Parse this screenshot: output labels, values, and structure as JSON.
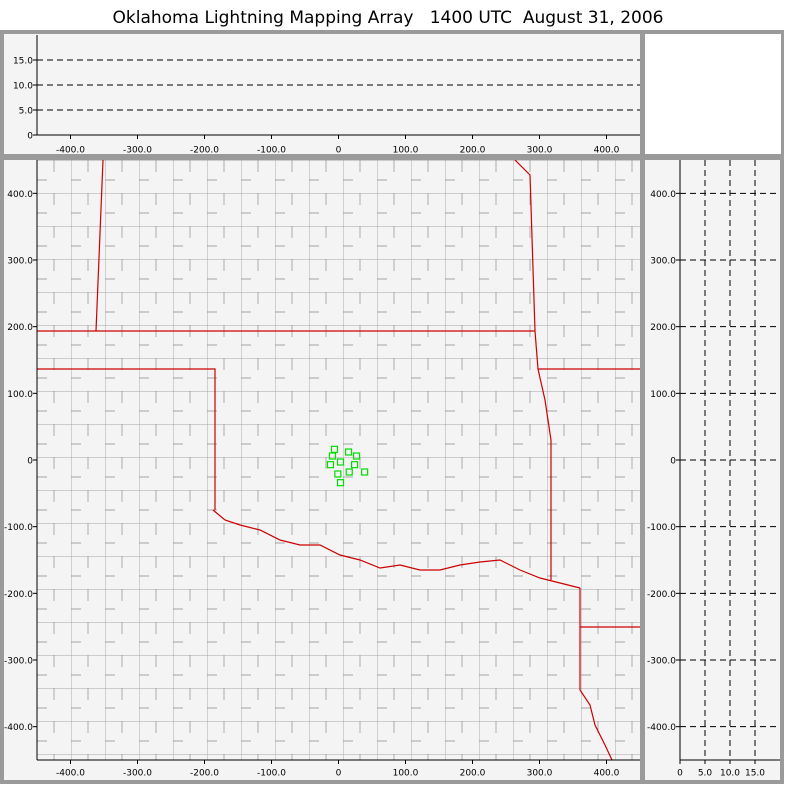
{
  "title": "Oklahoma Lightning Mapping Array   1400 UTC  August 31, 2006",
  "chart_data": [
    {
      "type": "scatter",
      "x": [],
      "y": [],
      "color": "#00dd00",
      "xlim": [
        -450,
        450
      ],
      "ylim": [
        0,
        20
      ],
      "xticks": [
        {
          "value": -400,
          "label": "-400.0"
        },
        {
          "value": -300,
          "label": "-300.0"
        },
        {
          "value": -200,
          "label": "-200.0"
        },
        {
          "value": -100,
          "label": "-100.0"
        },
        0,
        {
          "value": 100,
          "label": "100.0"
        },
        {
          "value": 200,
          "label": "200.0"
        },
        {
          "value": 300,
          "label": "300.0"
        },
        {
          "value": 400,
          "label": "400.0"
        }
      ],
      "yticks": [
        0,
        {
          "value": 5,
          "label": "5.0"
        },
        {
          "value": 10,
          "label": "10.0"
        },
        {
          "value": 15,
          "label": "15.0"
        }
      ],
      "grid": true
    },
    {
      "type": "scatter",
      "x": [
        -6,
        -9,
        15,
        27,
        -12,
        3,
        24,
        16,
        -1,
        39,
        3
      ],
      "y": [
        16,
        6,
        12,
        6,
        -7,
        -3,
        -7,
        -18,
        -21,
        -18,
        -34
      ],
      "color": "#00dd00",
      "xlim": [
        -450,
        450
      ],
      "ylim": [
        -450,
        450
      ],
      "xticks": [
        {
          "value": -400,
          "label": "-400.0"
        },
        {
          "value": -300,
          "label": "-300.0"
        },
        {
          "value": -200,
          "label": "-200.0"
        },
        {
          "value": -100,
          "label": "-100.0"
        },
        0,
        {
          "value": 100,
          "label": "100.0"
        },
        {
          "value": 200,
          "label": "200.0"
        },
        {
          "value": 300,
          "label": "300.0"
        },
        {
          "value": 400,
          "label": "400.0"
        }
      ],
      "yticks": [
        {
          "value": 400,
          "label": "400.0"
        },
        {
          "value": 300,
          "label": "300.0"
        },
        {
          "value": 200,
          "label": "200.0"
        },
        {
          "value": 100,
          "label": "100.0"
        },
        0,
        {
          "value": -100,
          "label": "-100.0"
        },
        {
          "value": -200,
          "label": "-200.0"
        },
        {
          "value": -300,
          "label": "-300.0"
        },
        {
          "value": -400,
          "label": "-400.0"
        }
      ],
      "grid": false
    },
    {
      "type": "scatter",
      "x": [],
      "y": [],
      "color": "#00dd00",
      "xlim": [
        0,
        20
      ],
      "ylim": [
        -450,
        450
      ],
      "xticks": [
        0,
        {
          "value": 5,
          "label": "5.0"
        },
        {
          "value": 10,
          "label": "10.0"
        },
        {
          "value": 15,
          "label": "15.0"
        }
      ],
      "yticks": [
        {
          "value": 400,
          "label": "400.0"
        },
        {
          "value": 300,
          "label": "300.0"
        },
        {
          "value": 200,
          "label": "200.0"
        },
        {
          "value": 100,
          "label": "100.0"
        },
        0,
        {
          "value": -100,
          "label": "-100.0"
        },
        {
          "value": -200,
          "label": "-200.0"
        },
        {
          "value": -300,
          "label": "-300.0"
        },
        {
          "value": -400,
          "label": "-400.0"
        }
      ],
      "grid": true
    }
  ]
}
